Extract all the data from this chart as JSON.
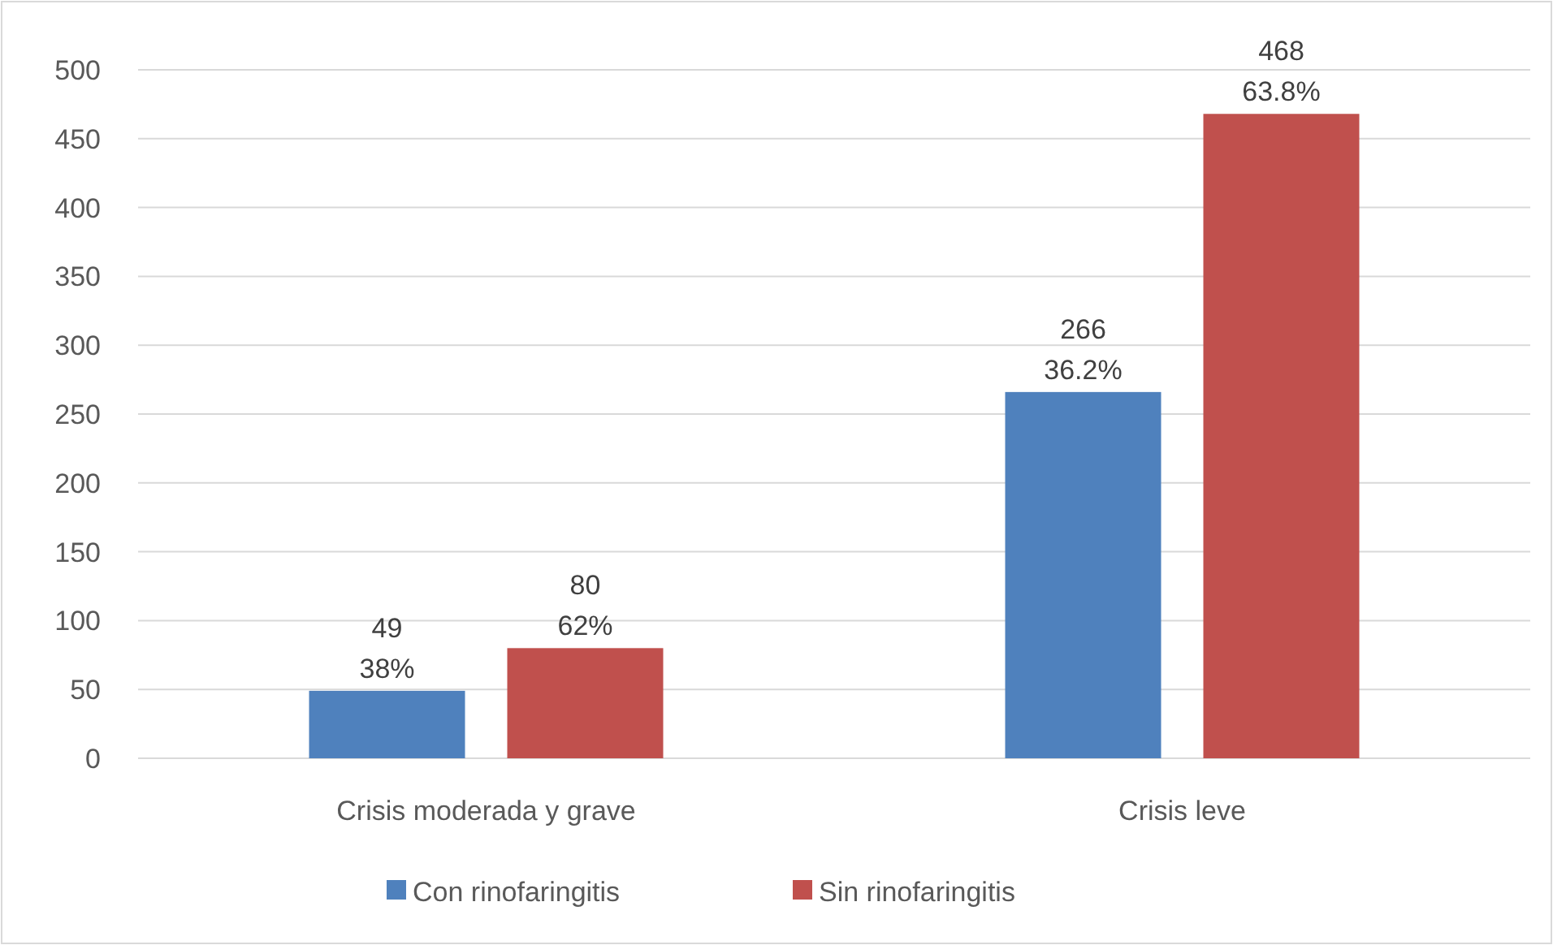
{
  "chart_data": {
    "type": "bar",
    "categories": [
      "Crisis moderada y grave",
      "Crisis leve"
    ],
    "series": [
      {
        "name": "Con rinofaringitis",
        "color": "#4f81bd",
        "values": [
          49,
          266
        ],
        "value_labels": [
          "49\n38%",
          "266\n36.2%"
        ]
      },
      {
        "name": "Sin rinofaringitis",
        "color": "#c0504d",
        "values": [
          80,
          468
        ],
        "value_labels": [
          "80\n62%",
          "468\n63.8%"
        ]
      }
    ],
    "ylim": [
      0,
      500
    ],
    "yticks": [
      0,
      50,
      100,
      150,
      200,
      250,
      300,
      350,
      400,
      450,
      500
    ],
    "grid": "y",
    "legend": "bottom"
  }
}
